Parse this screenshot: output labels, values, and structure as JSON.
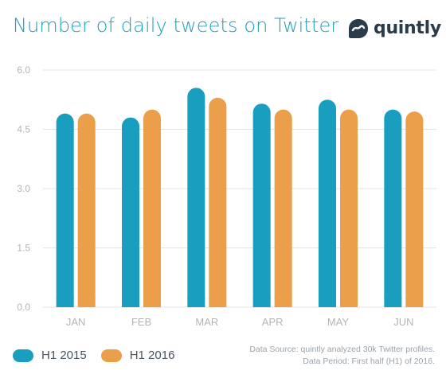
{
  "header": {
    "title": "Number of daily tweets on Twitter",
    "logo_text": "quintly",
    "logo_icon": "quintly-logo-icon"
  },
  "colors": {
    "title": "#1b9fc0",
    "h1_2015": "#1a9ebf",
    "h1_2016": "#eb9f4a",
    "grid": "#e3e3e3",
    "tick": "#b5b5b5",
    "logo_dark": "#2a3b4c"
  },
  "chart_data": {
    "type": "bar",
    "categories": [
      "JAN",
      "FEB",
      "MAR",
      "APR",
      "MAY",
      "JUN"
    ],
    "series": [
      {
        "name": "H1 2015",
        "values": [
          4.9,
          4.8,
          5.55,
          5.15,
          5.25,
          5.0
        ]
      },
      {
        "name": "H1 2016",
        "values": [
          4.9,
          5.0,
          5.3,
          5.0,
          5.0,
          4.95
        ]
      }
    ],
    "yticks": [
      "0.0",
      "1.5",
      "3.0",
      "4.5",
      "6.0"
    ],
    "ylim": [
      0,
      6
    ],
    "grid": true,
    "legend": "bottom-left"
  },
  "footnote": {
    "line1": "Data Source: quintly analyzed 30k Twitter profiles.",
    "line2": "Data Period: First half (H1) of 2016."
  }
}
